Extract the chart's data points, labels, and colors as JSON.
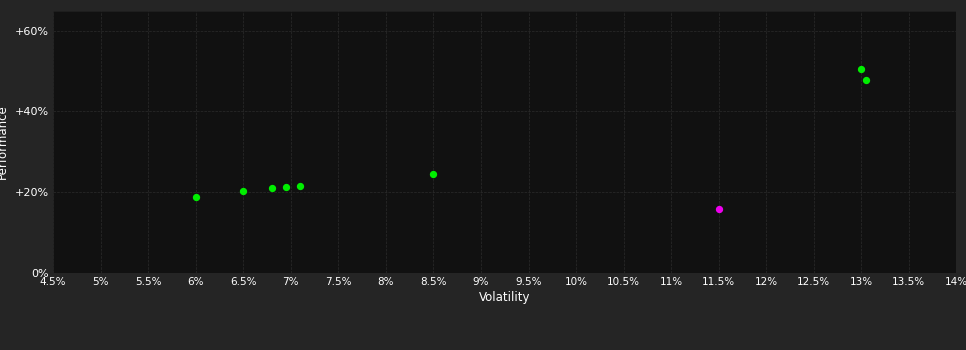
{
  "bg_color": "#252525",
  "plot_bg_color": "#111111",
  "grid_color": "#333333",
  "text_color": "#ffffff",
  "xlabel": "Volatility",
  "ylabel": "Performance",
  "xlim": [
    0.045,
    0.14
  ],
  "ylim": [
    0.0,
    0.65
  ],
  "xticks": [
    0.045,
    0.05,
    0.055,
    0.06,
    0.065,
    0.07,
    0.075,
    0.08,
    0.085,
    0.09,
    0.095,
    0.1,
    0.105,
    0.11,
    0.115,
    0.12,
    0.125,
    0.13,
    0.135,
    0.14
  ],
  "yticks": [
    0.0,
    0.2,
    0.4,
    0.6
  ],
  "ytick_labels": [
    "0%",
    "+20%",
    "+40%",
    "+60%"
  ],
  "green_points": [
    [
      0.06,
      0.188
    ],
    [
      0.065,
      0.202
    ],
    [
      0.068,
      0.21
    ],
    [
      0.0695,
      0.213
    ],
    [
      0.071,
      0.216
    ],
    [
      0.085,
      0.245
    ],
    [
      0.13,
      0.505
    ],
    [
      0.1305,
      0.478
    ]
  ],
  "magenta_points": [
    [
      0.115,
      0.158
    ]
  ],
  "green_color": "#00ee00",
  "magenta_color": "#ee00ee",
  "marker_size": 18
}
